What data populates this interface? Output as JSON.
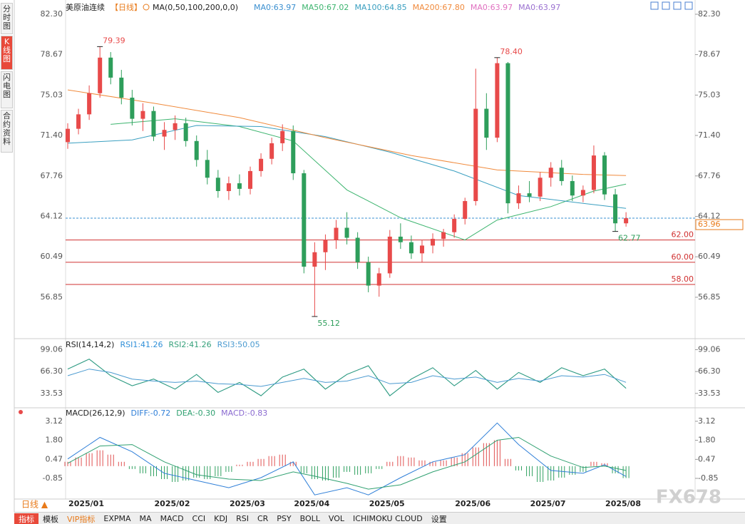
{
  "sidebar": [
    "分时图",
    "K线图",
    "闪电图",
    "合约资料"
  ],
  "period_button": "日线 ▲",
  "watermark": "FX678",
  "toolbar": [
    "指标",
    "模板",
    "VIP指标",
    "EXPMA",
    "MA",
    "MACD",
    "CCI",
    "KDJ",
    "RSI",
    "CR",
    "PSY",
    "BOLL",
    "VOL",
    "ICHIMOKU CLOUD",
    "设置"
  ],
  "chart_data": [
    {
      "type": "candlestick",
      "title": "美原油连续",
      "period": "【日线】",
      "indicator": "MA(0,50,100,200,0,0)",
      "extra_legend": [
        {
          "text": "MA0:63.97",
          "color": "#3a8fd0"
        },
        {
          "text": "MA0:63.97",
          "color": "#e070c0"
        },
        {
          "text": "MA0:63.97",
          "color": "#9a70d0"
        }
      ],
      "up_color": "#e84a4a",
      "down_color": "#2e9e5b",
      "categories": [
        null,
        "2025/01",
        null,
        null,
        null,
        null,
        null,
        null,
        null,
        "2025/02",
        null,
        null,
        null,
        null,
        null,
        null,
        "2025/03",
        null,
        null,
        null,
        null,
        null,
        "2025/04",
        null,
        null,
        null,
        null,
        null,
        null,
        "2025/05",
        null,
        null,
        null,
        null,
        null,
        null,
        null,
        "2025/06",
        null,
        null,
        null,
        null,
        null,
        null,
        "2025/07",
        null,
        null,
        null,
        null,
        null,
        null,
        "2025/08",
        null
      ],
      "open": [
        70.8,
        72.0,
        73.3,
        75.2,
        78.4,
        76.6,
        74.8,
        72.9,
        73.6,
        71.3,
        71.9,
        72.5,
        70.9,
        69.2,
        67.6,
        66.4,
        67.1,
        66.6,
        68.2,
        69.3,
        70.7,
        71.8,
        68.0,
        59.6,
        60.9,
        62.0,
        63.1,
        62.2,
        60.0,
        57.9,
        59.0,
        62.3,
        61.8,
        60.8,
        61.5,
        62.1,
        62.7,
        63.9,
        65.5,
        73.8,
        71.2,
        77.9,
        65.3,
        66.2,
        65.9,
        67.6,
        68.5,
        67.3,
        66.0,
        66.5,
        69.6,
        66.1,
        63.5
      ],
      "high": [
        72.5,
        73.8,
        75.9,
        79.39,
        78.9,
        77.3,
        75.5,
        74.3,
        74.0,
        72.6,
        73.2,
        73.0,
        71.4,
        70.1,
        68.3,
        67.7,
        67.9,
        68.6,
        69.8,
        71.2,
        72.4,
        72.3,
        68.3,
        61.8,
        62.5,
        63.8,
        64.5,
        62.7,
        60.5,
        59.5,
        62.9,
        63.5,
        62.4,
        62.0,
        62.6,
        63.0,
        64.3,
        65.8,
        77.4,
        75.2,
        78.4,
        78.0,
        66.9,
        67.3,
        68.1,
        69.0,
        69.2,
        67.8,
        66.9,
        70.5,
        69.9,
        66.6,
        64.5
      ],
      "low": [
        70.2,
        71.5,
        72.8,
        74.8,
        76.0,
        74.2,
        72.3,
        71.8,
        70.9,
        70.1,
        71.0,
        70.4,
        68.6,
        67.0,
        65.8,
        65.6,
        66.0,
        66.1,
        67.7,
        68.8,
        70.0,
        67.4,
        59.0,
        55.12,
        59.3,
        61.2,
        61.6,
        59.4,
        57.3,
        56.9,
        58.6,
        61.2,
        60.3,
        60.0,
        60.8,
        61.4,
        62.2,
        63.4,
        65.1,
        70.1,
        70.8,
        64.4,
        64.8,
        65.4,
        65.5,
        66.8,
        66.9,
        65.5,
        65.4,
        66.2,
        65.6,
        62.77,
        63.2
      ],
      "close": [
        72.0,
        73.3,
        75.2,
        78.4,
        76.6,
        74.8,
        72.9,
        73.6,
        71.3,
        71.9,
        72.5,
        70.9,
        69.2,
        67.6,
        66.4,
        67.1,
        66.6,
        68.2,
        69.3,
        70.7,
        71.8,
        68.0,
        59.6,
        60.9,
        62.0,
        63.1,
        62.2,
        60.0,
        57.9,
        59.0,
        62.3,
        61.8,
        60.8,
        61.5,
        62.1,
        62.7,
        63.9,
        65.5,
        73.8,
        71.2,
        77.9,
        65.3,
        66.2,
        65.9,
        67.6,
        68.5,
        67.3,
        66.0,
        66.5,
        69.6,
        66.1,
        63.5,
        63.96
      ],
      "series": [
        {
          "name": "MA50:67.02",
          "color": "#3cb46e",
          "x": [
            4,
            10,
            16,
            21,
            26,
            31,
            37,
            40,
            45,
            49,
            52
          ],
          "values": [
            72.4,
            72.9,
            72.2,
            70.9,
            66.5,
            64.0,
            62.0,
            63.8,
            65.0,
            66.4,
            67.02
          ]
        },
        {
          "name": "MA100:64.85",
          "color": "#3a9fc0",
          "x": [
            0,
            6,
            12,
            18,
            24,
            30,
            36,
            42,
            48,
            52
          ],
          "values": [
            70.7,
            71.0,
            72.3,
            72.2,
            71.3,
            69.9,
            68.2,
            66.0,
            65.3,
            64.85
          ]
        },
        {
          "name": "MA200:67.80",
          "color": "#f08a3c",
          "x": [
            0,
            8,
            16,
            24,
            32,
            40,
            48,
            52
          ],
          "values": [
            75.5,
            74.3,
            73.0,
            71.2,
            69.6,
            68.3,
            67.9,
            67.8
          ]
        }
      ],
      "ylim": [
        53.45,
        82.94
      ],
      "yticks": [
        {
          "value": 82.3,
          "label": "82.30"
        },
        78.67,
        75.03,
        {
          "value": 71.4,
          "label": "71.40"
        },
        67.76,
        64.12,
        60.49,
        56.85
      ],
      "reference_lines": [
        {
          "value": 62,
          "label": "62.00"
        },
        {
          "value": 60,
          "label": "60.00"
        },
        {
          "value": 58,
          "label": "58.00"
        }
      ],
      "last_price": {
        "value": 63.96,
        "label": "63.96"
      },
      "annotations": [
        {
          "x": 3,
          "at": "high",
          "label": "79.39"
        },
        {
          "x": 40,
          "at": "high",
          "label": "78.40"
        },
        {
          "x": 23,
          "at": "low",
          "label": "55.12"
        },
        {
          "x": 51,
          "at": "low",
          "label": "62.77"
        }
      ]
    },
    {
      "type": "line",
      "title": "RSI(14,14,2)",
      "series": [
        {
          "name": "RSI1:41.26",
          "color": "#2f8fd8",
          "x": [
            0,
            2,
            4,
            6,
            8,
            10,
            12,
            14,
            16,
            18,
            20,
            22,
            24,
            26,
            28,
            30,
            32,
            34,
            36,
            38,
            40,
            42,
            44,
            46,
            48,
            50,
            52
          ],
          "values": [
            70,
            85,
            60,
            45,
            55,
            40,
            62,
            35,
            50,
            30,
            58,
            70,
            40,
            62,
            75,
            30,
            55,
            72,
            45,
            68,
            40,
            65,
            50,
            72,
            60,
            70,
            41.26
          ]
        },
        {
          "name": "RSI2:41.26",
          "color": "#35a07a",
          "x": [
            0,
            2,
            4,
            6,
            8,
            10,
            12,
            14,
            16,
            18,
            20,
            22,
            24,
            26,
            28,
            30,
            32,
            34,
            36,
            38,
            40,
            42,
            44,
            46,
            48,
            50,
            52
          ],
          "values": [
            70,
            85,
            60,
            45,
            55,
            40,
            62,
            35,
            50,
            30,
            58,
            70,
            40,
            62,
            75,
            30,
            55,
            72,
            45,
            68,
            40,
            65,
            50,
            72,
            60,
            70,
            41.26
          ]
        },
        {
          "name": "RSI3:50.05",
          "color": "#4a9ad0",
          "x": [
            0,
            2,
            4,
            6,
            8,
            10,
            12,
            14,
            16,
            18,
            20,
            22,
            24,
            26,
            28,
            30,
            32,
            34,
            36,
            38,
            40,
            42,
            44,
            46,
            48,
            50,
            52
          ],
          "values": [
            60,
            70,
            65,
            55,
            52,
            50,
            52,
            48,
            47,
            44,
            50,
            56,
            50,
            52,
            60,
            48,
            50,
            60,
            55,
            58,
            50,
            56,
            52,
            60,
            58,
            62,
            50.05
          ]
        }
      ],
      "ylim": [
        14.08,
        110.28
      ],
      "yticks": [
        99.06,
        {
          "value": 66.3,
          "label": "66.30"
        },
        33.53
      ]
    },
    {
      "type": "macd",
      "title": "MACD(26,12,9)",
      "histogram": {
        "name": "MACD:-0.83",
        "color": "#8a6ad0",
        "up_color": "#e05050",
        "down_color": "#30a060",
        "values": [
          0.3,
          0.6,
          0.9,
          1.1,
          0.8,
          0.3,
          -0.2,
          -0.5,
          -0.7,
          -0.9,
          -1.1,
          -1.0,
          -0.8,
          -0.9,
          -0.7,
          -0.4,
          0.1,
          0.3,
          0.5,
          0.7,
          0.8,
          0.3,
          -0.5,
          -0.9,
          -1.0,
          -0.8,
          -0.4,
          -0.6,
          -0.5,
          -0.2,
          0.3,
          0.7,
          0.6,
          0.4,
          0.3,
          0.4,
          0.6,
          0.9,
          1.3,
          1.6,
          1.8,
          0.5,
          -0.3,
          -0.7,
          -1.1,
          -1.0,
          -0.8,
          -0.6,
          -0.4,
          0.3,
          0.2,
          -0.5,
          -0.83
        ]
      },
      "series": [
        {
          "name": "DIFF:-0.72",
          "color": "#2f7fd8",
          "x": [
            0,
            3,
            6,
            9,
            12,
            15,
            18,
            21,
            23,
            26,
            28,
            31,
            34,
            37,
            40,
            42,
            45,
            48,
            50,
            52
          ],
          "values": [
            0.5,
            2.0,
            1.0,
            -0.5,
            -1.0,
            -1.5,
            -0.8,
            0.3,
            -2.0,
            -1.5,
            -2.0,
            -0.8,
            0.3,
            0.8,
            3.0,
            1.5,
            -0.3,
            -0.5,
            0.1,
            -0.72
          ]
        },
        {
          "name": "DEA:-0.30",
          "color": "#2fa070",
          "x": [
            0,
            3,
            6,
            9,
            12,
            15,
            18,
            21,
            23,
            26,
            28,
            31,
            34,
            37,
            40,
            42,
            45,
            48,
            50,
            52
          ],
          "values": [
            0.2,
            1.4,
            1.5,
            0.3,
            -0.6,
            -0.9,
            -1.0,
            -0.4,
            -0.7,
            -1.2,
            -1.6,
            -1.3,
            -0.4,
            0.3,
            1.8,
            2.0,
            0.7,
            -0.1,
            0.0,
            -0.3
          ]
        }
      ],
      "ylim": [
        -2.29,
        3.91
      ],
      "yticks": [
        3.12,
        {
          "value": 1.8,
          "label": "1.80"
        },
        0.47,
        -0.85
      ]
    }
  ]
}
